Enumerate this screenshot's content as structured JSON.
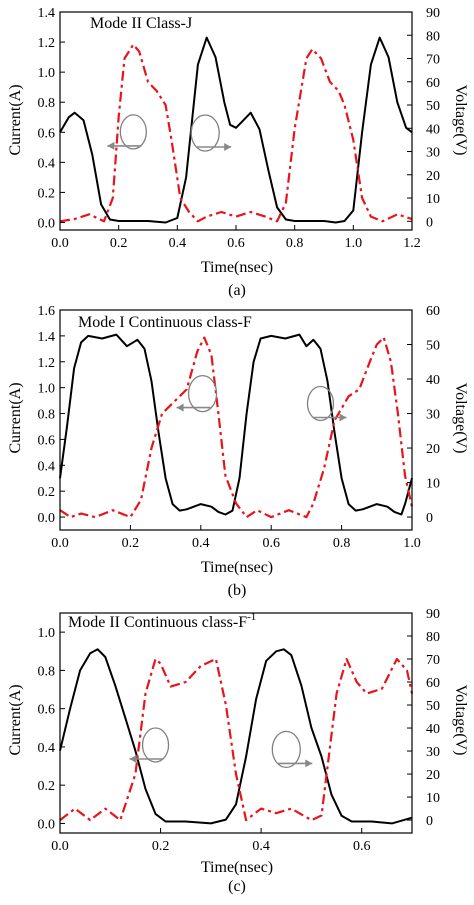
{
  "chart_data": [
    {
      "type": "line",
      "panel_label": "(a)",
      "annotation": "Mode II  Class-J",
      "xlabel": "Time(nsec)",
      "ylabel": "Current(A)",
      "y2label": "Voltage(V)",
      "xlim": [
        0,
        1.2
      ],
      "ylim": [
        -0.05,
        1.4
      ],
      "y2lim": [
        -3.75,
        90
      ],
      "xticks": [
        "0.0",
        "0.2",
        "0.4",
        "0.6",
        "0.8",
        "1.0",
        "1.2"
      ],
      "yticks": [
        "0.0",
        "0.2",
        "0.4",
        "0.6",
        "0.8",
        "1.0",
        "1.2",
        "1.4"
      ],
      "y2ticks": [
        "0",
        "10",
        "20",
        "30",
        "40",
        "50",
        "60",
        "70",
        "80",
        "90"
      ],
      "colors": {
        "current": "#000000",
        "voltage": "#e8141b",
        "arrow": "#888888"
      },
      "series": [
        {
          "axis": "left",
          "style": "solid",
          "x": [
            0,
            0.03,
            0.05,
            0.08,
            0.11,
            0.14,
            0.17,
            0.2,
            0.25,
            0.3,
            0.36,
            0.4,
            0.43,
            0.47,
            0.5,
            0.53,
            0.56,
            0.58,
            0.6,
            0.62,
            0.65,
            0.68,
            0.71,
            0.74,
            0.77,
            0.8,
            0.85,
            0.9,
            0.94,
            0.97,
            1.0,
            1.03,
            1.06,
            1.09,
            1.12,
            1.15,
            1.18,
            1.2
          ],
          "y": [
            0.6,
            0.7,
            0.73,
            0.68,
            0.45,
            0.12,
            0.02,
            0.01,
            0.01,
            0.01,
            0.0,
            0.03,
            0.3,
            1.05,
            1.23,
            1.1,
            0.8,
            0.65,
            0.63,
            0.67,
            0.73,
            0.62,
            0.35,
            0.1,
            0.02,
            0.01,
            0.01,
            0.01,
            0.0,
            0.01,
            0.08,
            0.6,
            1.05,
            1.23,
            1.1,
            0.8,
            0.63,
            0.6
          ]
        },
        {
          "axis": "right",
          "style": "dashdot",
          "x": [
            0,
            0.05,
            0.1,
            0.15,
            0.18,
            0.2,
            0.22,
            0.25,
            0.27,
            0.3,
            0.33,
            0.36,
            0.38,
            0.41,
            0.44,
            0.47,
            0.5,
            0.55,
            0.6,
            0.65,
            0.7,
            0.74,
            0.77,
            0.8,
            0.84,
            0.86,
            0.89,
            0.92,
            0.95,
            0.97,
            1.0,
            1.03,
            1.06,
            1.1,
            1.15,
            1.2
          ],
          "y": [
            0,
            1,
            3,
            0,
            10,
            45,
            70,
            76,
            73,
            60,
            56,
            50,
            35,
            10,
            4,
            0,
            2,
            4,
            2,
            4,
            2,
            0,
            8,
            40,
            70,
            74,
            70,
            60,
            56,
            50,
            35,
            10,
            2,
            0,
            3,
            1
          ]
        }
      ]
    },
    {
      "type": "line",
      "panel_label": "(b)",
      "annotation": "Mode I  Continuous class-F",
      "xlabel": "Time(nsec)",
      "ylabel": "Current(A)",
      "y2label": "Voltage(V)",
      "xlim": [
        0,
        1.0
      ],
      "ylim": [
        -0.1,
        1.6
      ],
      "y2lim": [
        -3.75,
        60
      ],
      "xticks": [
        "0.0",
        "0.2",
        "0.4",
        "0.6",
        "0.8",
        "1.0"
      ],
      "yticks": [
        "0.0",
        "0.2",
        "0.4",
        "0.6",
        "0.8",
        "1.0",
        "1.2",
        "1.4",
        "1.6"
      ],
      "y2ticks": [
        "0",
        "10",
        "20",
        "30",
        "40",
        "50",
        "60"
      ],
      "colors": {
        "current": "#000000",
        "voltage": "#e8141b",
        "arrow": "#888888"
      },
      "series": [
        {
          "axis": "left",
          "style": "solid",
          "x": [
            0,
            0.02,
            0.04,
            0.06,
            0.08,
            0.12,
            0.16,
            0.19,
            0.22,
            0.24,
            0.26,
            0.28,
            0.3,
            0.32,
            0.34,
            0.36,
            0.4,
            0.43,
            0.45,
            0.47,
            0.49,
            0.51,
            0.53,
            0.55,
            0.57,
            0.6,
            0.64,
            0.68,
            0.7,
            0.72,
            0.74,
            0.76,
            0.78,
            0.8,
            0.82,
            0.84,
            0.86,
            0.9,
            0.93,
            0.95,
            0.97,
            0.98,
            1.0
          ],
          "y": [
            0.3,
            0.7,
            1.15,
            1.35,
            1.4,
            1.38,
            1.41,
            1.32,
            1.37,
            1.3,
            1.05,
            0.65,
            0.3,
            0.1,
            0.05,
            0.06,
            0.1,
            0.08,
            0.04,
            0.02,
            0.05,
            0.3,
            0.8,
            1.2,
            1.38,
            1.4,
            1.38,
            1.41,
            1.32,
            1.37,
            1.3,
            1.05,
            0.65,
            0.3,
            0.1,
            0.05,
            0.06,
            0.1,
            0.08,
            0.04,
            0.02,
            0.1,
            0.3
          ]
        },
        {
          "axis": "right",
          "style": "dashdot",
          "x": [
            0,
            0.03,
            0.06,
            0.1,
            0.15,
            0.2,
            0.23,
            0.26,
            0.29,
            0.33,
            0.36,
            0.39,
            0.41,
            0.43,
            0.45,
            0.47,
            0.5,
            0.53,
            0.56,
            0.6,
            0.65,
            0.7,
            0.72,
            0.75,
            0.78,
            0.82,
            0.85,
            0.88,
            0.9,
            0.92,
            0.94,
            0.96,
            0.98,
            1.0
          ],
          "y": [
            2,
            0,
            1,
            0,
            2,
            0,
            5,
            20,
            30,
            34,
            37,
            48,
            52,
            47,
            30,
            12,
            4,
            0,
            2,
            0,
            2,
            0,
            4,
            14,
            28,
            35,
            37,
            45,
            50,
            52,
            45,
            30,
            12,
            3
          ]
        }
      ]
    },
    {
      "type": "line",
      "panel_label": "(c)",
      "annotation": "Mode II  Continuous class-F",
      "annotation_sup": "-1",
      "xlabel": "Time(nsec)",
      "ylabel": "Current(A)",
      "y2label": "Voltage(V)",
      "xlim": [
        0,
        0.7
      ],
      "ylim": [
        -0.05,
        1.1
      ],
      "y2lim": [
        -5.625,
        90
      ],
      "xticks": [
        "0.0",
        "0.2",
        "0.4",
        "0.6"
      ],
      "yticks": [
        "0.0",
        "0.2",
        "0.4",
        "0.6",
        "0.8",
        "1.0"
      ],
      "y2ticks": [
        "0",
        "10",
        "20",
        "30",
        "40",
        "50",
        "60",
        "70",
        "80",
        "90"
      ],
      "colors": {
        "current": "#000000",
        "voltage": "#e8141b",
        "arrow": "#888888"
      },
      "series": [
        {
          "axis": "left",
          "style": "solid",
          "x": [
            0,
            0.02,
            0.04,
            0.06,
            0.075,
            0.09,
            0.11,
            0.13,
            0.15,
            0.17,
            0.19,
            0.21,
            0.25,
            0.3,
            0.33,
            0.35,
            0.37,
            0.39,
            0.41,
            0.43,
            0.445,
            0.46,
            0.48,
            0.5,
            0.52,
            0.54,
            0.56,
            0.58,
            0.62,
            0.66,
            0.7
          ],
          "y": [
            0.38,
            0.6,
            0.8,
            0.89,
            0.91,
            0.87,
            0.72,
            0.55,
            0.38,
            0.18,
            0.05,
            0.01,
            0.01,
            0.0,
            0.02,
            0.1,
            0.35,
            0.65,
            0.85,
            0.9,
            0.91,
            0.88,
            0.72,
            0.5,
            0.35,
            0.15,
            0.04,
            0.01,
            0.01,
            0.0,
            0.03
          ]
        },
        {
          "axis": "right",
          "style": "dashdot",
          "x": [
            0,
            0.03,
            0.06,
            0.09,
            0.12,
            0.15,
            0.17,
            0.19,
            0.2,
            0.22,
            0.25,
            0.28,
            0.31,
            0.33,
            0.35,
            0.37,
            0.4,
            0.43,
            0.46,
            0.5,
            0.52,
            0.55,
            0.57,
            0.59,
            0.61,
            0.64,
            0.67,
            0.69,
            0.7
          ],
          "y": [
            0,
            5,
            0,
            5,
            0,
            20,
            55,
            70,
            68,
            58,
            60,
            67,
            70,
            50,
            20,
            0,
            5,
            3,
            5,
            0,
            2,
            55,
            70,
            60,
            55,
            57,
            70,
            65,
            55
          ]
        }
      ]
    }
  ]
}
